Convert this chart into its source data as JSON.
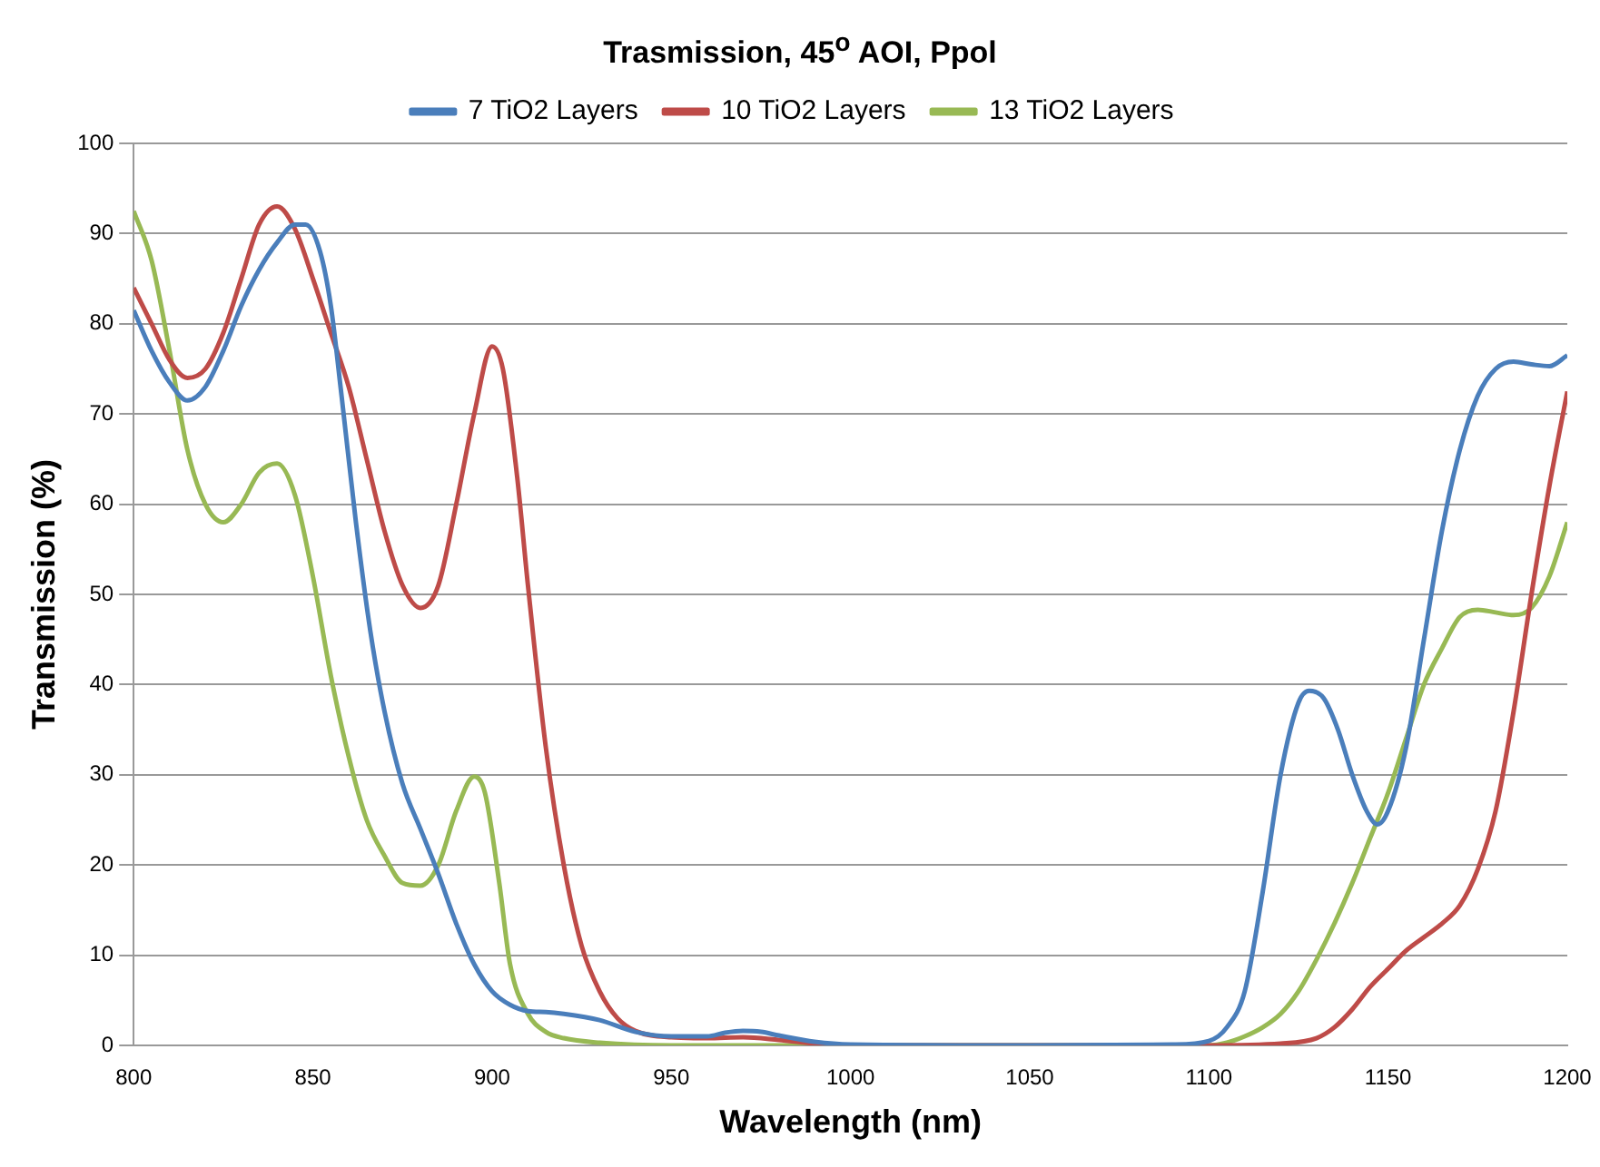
{
  "chart_data": {
    "type": "line",
    "title": "Trasmission, 45$^{o}$ AOI, Ppol",
    "xlabel": "Wavelength (nm)",
    "ylabel": "Transmission (%)",
    "xlim": [
      800,
      1200
    ],
    "xticks": [
      800,
      850,
      900,
      950,
      1000,
      1050,
      1100,
      1150,
      1200
    ],
    "ylim": [
      0,
      100
    ],
    "yticks": [
      0,
      10,
      20,
      30,
      40,
      50,
      60,
      70,
      80,
      90,
      100
    ],
    "grid": "y",
    "legend": "top",
    "marker": "none",
    "line_style": "solid",
    "series": [
      {
        "name": "7 TiO2 Layers",
        "color": "#4a7ebb",
        "x": [
          800,
          805,
          810,
          815,
          820,
          825,
          830,
          835,
          840,
          845,
          848,
          852,
          855,
          858,
          862,
          866,
          870,
          875,
          880,
          885,
          890,
          895,
          900,
          905,
          910,
          915,
          920,
          930,
          940,
          950,
          960,
          965,
          970,
          975,
          980,
          990,
          1000,
          1050,
          1090,
          1100,
          1105,
          1110,
          1115,
          1120,
          1125,
          1128,
          1132,
          1136,
          1140,
          1144,
          1147,
          1150,
          1155,
          1160,
          1165,
          1170,
          1175,
          1180,
          1185,
          1190,
          1195,
          1200
        ],
        "values": [
          81.5,
          77,
          73.5,
          71.5,
          73,
          77,
          82,
          86,
          89,
          91,
          91,
          88,
          82,
          72,
          58,
          46,
          37,
          29,
          24,
          19,
          13.5,
          9,
          6,
          4.5,
          3.8,
          3.7,
          3.5,
          2.8,
          1.5,
          1.0,
          1.0,
          1.4,
          1.6,
          1.5,
          1.1,
          0.4,
          0.1,
          0,
          0.1,
          0.5,
          2,
          6,
          17,
          30,
          38,
          39.3,
          38.5,
          35,
          30,
          26,
          24.5,
          26,
          33,
          45,
          57,
          66,
          72,
          75,
          75.8,
          75.5,
          75.3,
          76.5
        ]
      },
      {
        "name": "10 TiO2 Layers",
        "color": "#be4b48",
        "x": [
          800,
          805,
          810,
          815,
          820,
          825,
          830,
          835,
          840,
          845,
          850,
          855,
          860,
          865,
          870,
          875,
          880,
          885,
          890,
          895,
          900,
          903,
          907,
          910,
          915,
          920,
          925,
          930,
          935,
          940,
          950,
          960,
          970,
          980,
          990,
          1000,
          1100,
          1120,
          1130,
          1135,
          1140,
          1145,
          1150,
          1155,
          1160,
          1165,
          1170,
          1175,
          1180,
          1185,
          1190,
          1195,
          1200
        ],
        "values": [
          84,
          80,
          76,
          74,
          75,
          79,
          85,
          91,
          93,
          90.5,
          85,
          79,
          73,
          65,
          57,
          51,
          48.5,
          51,
          60,
          70,
          77.5,
          75,
          63,
          51,
          33,
          20,
          11,
          6,
          3,
          1.6,
          0.9,
          0.8,
          0.9,
          0.6,
          0.2,
          0,
          0,
          0.2,
          0.8,
          2,
          4,
          6.5,
          8.5,
          10.5,
          12,
          13.5,
          15.5,
          19.5,
          26,
          37,
          50,
          62,
          72.5
        ]
      },
      {
        "name": "13 TiO2 Layers",
        "color": "#98b954",
        "x": [
          800,
          805,
          810,
          815,
          820,
          825,
          830,
          835,
          840,
          845,
          850,
          855,
          860,
          865,
          870,
          875,
          880,
          885,
          890,
          895,
          898,
          902,
          905,
          910,
          915,
          920,
          930,
          950,
          1100,
          1105,
          1110,
          1115,
          1120,
          1125,
          1130,
          1135,
          1140,
          1145,
          1150,
          1155,
          1160,
          1165,
          1170,
          1175,
          1180,
          1185,
          1190,
          1195,
          1200
        ],
        "values": [
          92.5,
          87,
          77,
          66,
          60,
          58,
          60,
          63.5,
          64.5,
          61,
          52,
          41,
          32,
          25,
          21,
          18,
          17.7,
          20,
          26,
          29.8,
          28,
          18,
          9,
          3.5,
          1.5,
          0.8,
          0.3,
          0,
          0,
          0.3,
          1,
          2,
          3.5,
          6,
          9.5,
          13.5,
          18,
          23,
          28,
          34,
          40,
          44,
          47.5,
          48.3,
          48,
          47.7,
          48.5,
          52,
          58
        ]
      }
    ]
  }
}
